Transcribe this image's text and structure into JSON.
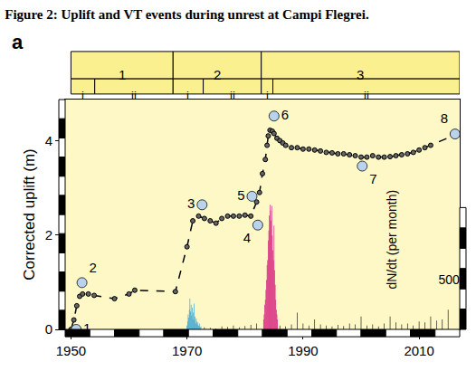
{
  "chart_data": {
    "type": "line",
    "title": "Figure 2: Uplift and VT events during unrest at Campi Flegrei.",
    "panel_label": "a",
    "y_label": "Corrected uplift (m)",
    "y2_label": "dN/dt (per month)",
    "xlim": [
      1949,
      2017
    ],
    "xticks": [
      1950,
      1970,
      1990,
      2010
    ],
    "ylim": [
      0,
      4.87
    ],
    "yticks": [
      0,
      2,
      4
    ],
    "y2lim": [
      0,
      2324
    ],
    "y2ticks": [
      500
    ],
    "grid": false,
    "tick_labels": true,
    "phases": [
      {
        "label": "1",
        "start": 1950,
        "end": 1967.6,
        "sub": [
          {
            "label": "i",
            "start": 1950,
            "end": 1954.1
          },
          {
            "label": "ii",
            "start": 1954.1,
            "end": 1967.6
          }
        ]
      },
      {
        "label": "2",
        "start": 1967.6,
        "end": 1982.8,
        "sub": [
          {
            "label": "i",
            "start": 1967.6,
            "end": 1972.8
          },
          {
            "label": "ii",
            "start": 1972.8,
            "end": 1982.8
          }
        ]
      },
      {
        "label": "3",
        "start": 1982.8,
        "end": 2017,
        "sub": [
          {
            "label": "i",
            "start": 1982.8,
            "end": 1984.8
          },
          {
            "label": "ii",
            "start": 1984.8,
            "end": 2017
          }
        ]
      }
    ],
    "series": [
      {
        "type": "bar",
        "axis": "y2",
        "color": "#2a9fd6",
        "x": [
          1970.0,
          1970.1,
          1970.2,
          1970.3,
          1970.4,
          1970.5,
          1970.6,
          1970.7,
          1970.8,
          1970.9,
          1971.0,
          1971.1,
          1971.2,
          1971.3,
          1971.4,
          1971.5,
          1971.6,
          1971.7,
          1971.8,
          1971.9,
          1972.0,
          1972.1,
          1972.2,
          1972.3,
          1972.4
        ],
        "values": [
          40,
          80,
          150,
          120,
          200,
          310,
          180,
          250,
          140,
          220,
          100,
          170,
          260,
          90,
          130,
          60,
          110,
          80,
          50,
          70,
          40,
          30,
          60,
          20,
          30
        ]
      },
      {
        "type": "bar",
        "axis": "y2",
        "color": "#d4157c",
        "x": [
          1983.2,
          1983.3,
          1983.4,
          1983.5,
          1983.6,
          1983.7,
          1983.8,
          1983.9,
          1984.0,
          1984.1,
          1984.2,
          1984.3,
          1984.4,
          1984.5,
          1984.6,
          1984.7,
          1984.8,
          1984.9,
          1985.0,
          1985.1,
          1985.2,
          1985.3,
          1985.4,
          1985.5,
          1985.6
        ],
        "values": [
          100,
          150,
          250,
          300,
          400,
          500,
          650,
          700,
          900,
          1000,
          1150,
          1260,
          1200,
          1100,
          1250,
          950,
          800,
          700,
          1050,
          600,
          450,
          300,
          200,
          150,
          100
        ]
      },
      {
        "type": "bar",
        "axis": "y2",
        "color": "#111111",
        "x": [
          1973,
          1974,
          1975,
          1976,
          1977,
          1978,
          1979,
          1980,
          1981,
          1982,
          1986,
          1987,
          1988,
          1989,
          1990,
          1991,
          1992,
          1993,
          1994,
          1995,
          1996,
          1997,
          1998,
          1999,
          2000,
          2001,
          2002,
          2003,
          2004,
          2005,
          2006,
          2007,
          2008,
          2009,
          2010,
          2011,
          2012,
          2013,
          2014,
          2015
        ],
        "values": [
          20,
          15,
          10,
          30,
          25,
          40,
          20,
          35,
          45,
          60,
          40,
          30,
          50,
          170,
          60,
          40,
          100,
          50,
          40,
          30,
          45,
          35,
          60,
          50,
          130,
          40,
          50,
          30,
          60,
          130,
          70,
          50,
          60,
          40,
          80,
          70,
          130,
          90,
          100,
          200
        ]
      },
      {
        "type": "line",
        "axis": "y",
        "color": "#000000",
        "line_style": "dashed",
        "marker": "circle",
        "x": [
          1950.0,
          1950.5,
          1951.0,
          1951.5,
          1952.0,
          1953.0,
          1954.0,
          1957.5,
          1960.0,
          1961.0,
          1968.0,
          1970.0,
          1971.0,
          1972.0,
          1973.0,
          1974.0,
          1975.0,
          1976.0,
          1977.0,
          1978.0,
          1979.0,
          1980.0,
          1981.0,
          1982.0,
          1982.5,
          1983.0,
          1983.5,
          1983.8,
          1984.0,
          1984.3,
          1984.7,
          1985.0,
          1985.5,
          1986.0,
          1986.5,
          1987.0,
          1988.0,
          1989.0,
          1990.0,
          1991.0,
          1992.0,
          1993.0,
          1994.0,
          1995.0,
          1996.0,
          1997.0,
          1998.0,
          1999.0,
          2000.0,
          2001.0,
          2002.0,
          2003.0,
          2004.0,
          2005.0,
          2006.0,
          2007.0,
          2008.0,
          2009.0,
          2010.0,
          2011.0,
          2012.0,
          2016.2
        ],
        "values": [
          0,
          0.2,
          0.5,
          0.7,
          0.75,
          0.75,
          0.72,
          0.65,
          0.75,
          0.83,
          0.8,
          1.75,
          2.3,
          2.4,
          2.35,
          2.3,
          2.25,
          2.35,
          2.4,
          2.4,
          2.4,
          2.42,
          2.4,
          2.7,
          2.9,
          3.3,
          3.6,
          3.9,
          4.1,
          4.22,
          4.2,
          4.15,
          4.05,
          4.0,
          3.95,
          3.9,
          3.85,
          3.85,
          3.82,
          3.82,
          3.8,
          3.78,
          3.75,
          3.74,
          3.72,
          3.72,
          3.7,
          3.68,
          3.65,
          3.65,
          3.68,
          3.65,
          3.65,
          3.66,
          3.68,
          3.7,
          3.72,
          3.75,
          3.8,
          3.85,
          3.9,
          4.12
        ]
      }
    ],
    "points": {
      "color": "#b9d3ec",
      "marker": "circle",
      "labels": [
        "1",
        "2",
        "3",
        "4",
        "5",
        "6",
        "7",
        "8"
      ],
      "x": [
        1950.9,
        1951.9,
        1972.6,
        1982.2,
        1981.2,
        1985.0,
        2000.2,
        2016.2
      ],
      "values": [
        0,
        0.99,
        2.64,
        2.21,
        2.82,
        4.52,
        3.46,
        4.14
      ]
    }
  }
}
